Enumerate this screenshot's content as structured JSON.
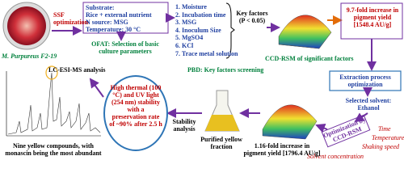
{
  "organism": {
    "label": "M. Purpureus F2-19"
  },
  "ssf": {
    "label": "SSF optimization"
  },
  "substrate": {
    "lines": [
      "Substrate:",
      "Rice + external nutrient",
      "N source: MSG",
      "Temperature: 30 °C"
    ]
  },
  "ofat": {
    "label": "OFAT: Selection of basic culture parameters"
  },
  "factors": {
    "items": [
      "1. Moisture",
      "2. Incubation time",
      "3. MSG",
      "4. Inoculum Size",
      "5. MgSO4",
      "6. KCl",
      "7. Trace metal solution"
    ]
  },
  "key_factors": {
    "label": "Key factors (P < 0.05)"
  },
  "pbd": {
    "label": "PBD: Key factors screening"
  },
  "ccd": {
    "label": "CCD-RSM of significant factors"
  },
  "yield1": {
    "label": "9.7-fold increase in pigment yield [1548.4 AU/g]"
  },
  "extraction": {
    "label": "Extraction process optimization"
  },
  "solvent": {
    "label": "Selected solvent: Ethanol"
  },
  "optimization": {
    "label": "Optimization by CCD-RSM"
  },
  "variables": {
    "items": [
      "Time",
      "Temperature",
      "Shaking speed",
      "Solvent concentration"
    ]
  },
  "yield2": {
    "label": "1.16-fold increase in pigment yield [1796.4 AU/g]"
  },
  "purified": {
    "label": "Purified yellow fraction"
  },
  "stability_step": {
    "label": "Stability analysis"
  },
  "stability": {
    "label": "High thermal (100 °C) and UV light (254 nm) stability with a preservation rate of ~90% after 2.5 h"
  },
  "lcms": {
    "label": "LC-ESI-MS analysis"
  },
  "compounds": {
    "label": "Nine yellow compounds, with monascin being the most abundant"
  }
}
